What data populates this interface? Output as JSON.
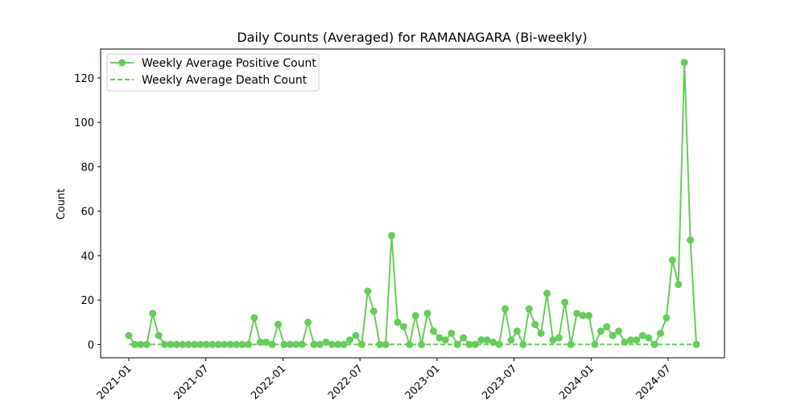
{
  "chart_data": {
    "type": "line",
    "title": "Daily Counts (Averaged) for RAMANAGARA (Bi-weekly)",
    "xlabel": "",
    "ylabel": "Count",
    "x_ticks": [
      "2021-01",
      "2021-07",
      "2022-01",
      "2022-07",
      "2023-01",
      "2023-07",
      "2024-01",
      "2024-07"
    ],
    "y_ticks": [
      0,
      20,
      40,
      60,
      80,
      100,
      120
    ],
    "ylim": [
      -6,
      133
    ],
    "grid": false,
    "legend_position": "upper-left",
    "series": [
      {
        "name": "Weekly Average Positive Count",
        "style": "solid-with-markers",
        "color": "#66cc5a",
        "values": [
          4,
          0,
          0,
          0,
          14,
          4,
          0,
          0,
          0,
          0,
          0,
          0,
          0,
          0,
          0,
          0,
          0,
          0,
          0,
          0,
          0,
          12,
          1,
          1,
          0,
          9,
          0,
          0,
          0,
          0,
          10,
          0,
          0,
          1,
          0,
          0,
          0,
          2,
          4,
          0,
          24,
          15,
          0,
          0,
          49,
          10,
          8,
          0,
          13,
          0,
          14,
          6,
          3,
          2,
          5,
          0,
          3,
          0,
          0,
          2,
          2,
          1,
          0,
          16,
          2,
          6,
          0,
          16,
          9,
          5,
          23,
          2,
          3,
          19,
          0,
          14,
          13,
          13,
          0,
          6,
          8,
          4,
          6,
          1,
          2,
          2,
          4,
          3,
          0,
          5,
          12,
          38,
          27,
          127,
          47,
          0
        ]
      },
      {
        "name": "Weekly Average Death Count",
        "style": "dashed",
        "color": "#66cc5a",
        "values": [
          0,
          0,
          0,
          0,
          0,
          0,
          0,
          0,
          0,
          0,
          0,
          0,
          0,
          0,
          0,
          0,
          0,
          0,
          0,
          0,
          0,
          0,
          0,
          0,
          0,
          0,
          0,
          0,
          0,
          0,
          0,
          0,
          0,
          0,
          0,
          0,
          0,
          0,
          0,
          0,
          0,
          0,
          0,
          0,
          0,
          0,
          0,
          0,
          0,
          0,
          0,
          0,
          0,
          0,
          0,
          0,
          0,
          0,
          0,
          0,
          0,
          0,
          0,
          0,
          0,
          0,
          0,
          0,
          0,
          0,
          0,
          0,
          0,
          0,
          0,
          0,
          0,
          0,
          0,
          0,
          0,
          0,
          0,
          0,
          0,
          0,
          0,
          0,
          0,
          0,
          0,
          0,
          0,
          0,
          0,
          0
        ]
      }
    ]
  }
}
